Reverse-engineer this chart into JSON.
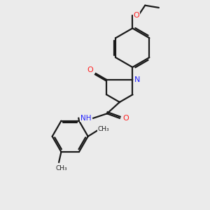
{
  "background_color": "#ebebeb",
  "bond_color": "#1a1a1a",
  "N_color": "#2020ff",
  "O_color": "#ff2020",
  "line_width": 1.6,
  "dbo": 0.07,
  "fig_size": [
    3.0,
    3.0
  ],
  "dpi": 100,
  "xlim": [
    -2.5,
    4.5
  ],
  "ylim": [
    -5.5,
    3.5
  ]
}
